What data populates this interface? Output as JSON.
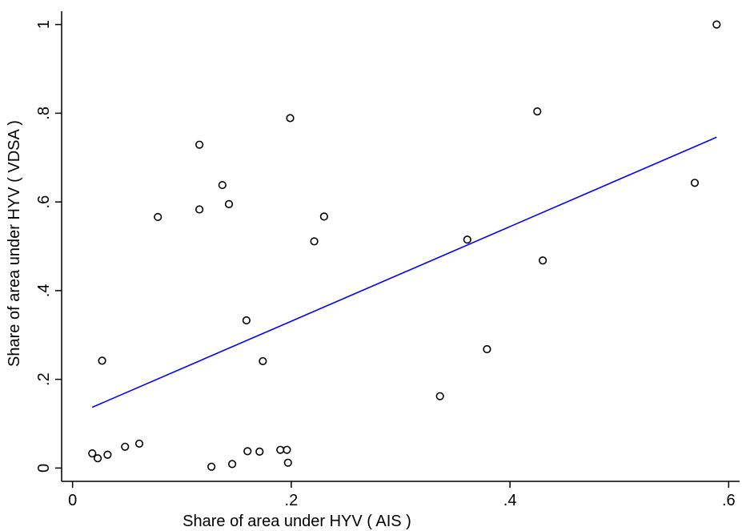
{
  "chart_data": {
    "type": "scatter",
    "title": "",
    "xlabel": "Share of area under HYV ( AIS )",
    "ylabel": "Share of area under HYV ( VDSA )",
    "xlim": [
      -0.01,
      0.61
    ],
    "ylim": [
      -0.03,
      1.03
    ],
    "x_ticks": [
      0,
      0.2,
      0.4,
      0.6
    ],
    "x_tick_labels": [
      "0",
      ".2",
      ".4",
      ".6"
    ],
    "y_ticks": [
      0,
      0.2,
      0.4,
      0.6,
      0.8,
      1
    ],
    "y_tick_labels": [
      "0",
      ".2",
      ".4",
      ".6",
      ".8",
      "1"
    ],
    "grid": false,
    "legend": "none",
    "point_color": "#000000",
    "fit_line_color": "#0000ff",
    "points": [
      {
        "x": 0.018,
        "y": 0.033
      },
      {
        "x": 0.023,
        "y": 0.022
      },
      {
        "x": 0.027,
        "y": 0.242
      },
      {
        "x": 0.032,
        "y": 0.03
      },
      {
        "x": 0.048,
        "y": 0.048
      },
      {
        "x": 0.061,
        "y": 0.055
      },
      {
        "x": 0.078,
        "y": 0.566
      },
      {
        "x": 0.116,
        "y": 0.729
      },
      {
        "x": 0.116,
        "y": 0.583
      },
      {
        "x": 0.127,
        "y": 0.003
      },
      {
        "x": 0.137,
        "y": 0.638
      },
      {
        "x": 0.143,
        "y": 0.595
      },
      {
        "x": 0.146,
        "y": 0.009
      },
      {
        "x": 0.159,
        "y": 0.333
      },
      {
        "x": 0.16,
        "y": 0.038
      },
      {
        "x": 0.171,
        "y": 0.037
      },
      {
        "x": 0.174,
        "y": 0.241
      },
      {
        "x": 0.19,
        "y": 0.041
      },
      {
        "x": 0.196,
        "y": 0.041
      },
      {
        "x": 0.197,
        "y": 0.012
      },
      {
        "x": 0.199,
        "y": 0.789
      },
      {
        "x": 0.221,
        "y": 0.511
      },
      {
        "x": 0.23,
        "y": 0.567
      },
      {
        "x": 0.336,
        "y": 0.162
      },
      {
        "x": 0.361,
        "y": 0.515
      },
      {
        "x": 0.379,
        "y": 0.268
      },
      {
        "x": 0.425,
        "y": 0.804
      },
      {
        "x": 0.43,
        "y": 0.468
      },
      {
        "x": 0.569,
        "y": 0.643
      },
      {
        "x": 0.589,
        "y": 1.0
      }
    ],
    "fit_line": {
      "x": [
        0.018,
        0.589
      ],
      "y": [
        0.137,
        0.746
      ]
    }
  }
}
